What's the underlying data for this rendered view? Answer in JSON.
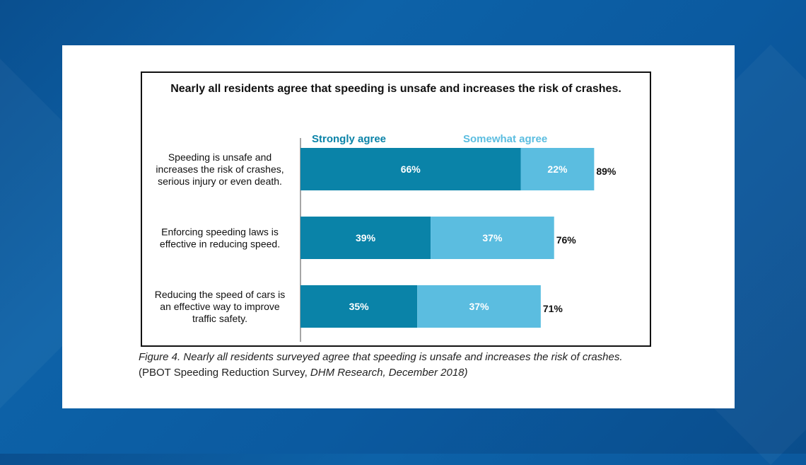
{
  "colors": {
    "strongly": "#0a83a8",
    "somewhat": "#5bbde0",
    "legend_strongly": "#0a83a8",
    "legend_somewhat": "#5bbde0"
  },
  "caption": {
    "line1": "Figure 4. Nearly all residents surveyed agree that speeding is unsafe and increases the risk of crashes.",
    "line2_prefix": "(PBOT Speeding Reduction Survey, ",
    "line2_italic": "DHM Research, December 2018)"
  },
  "chart_data": {
    "type": "bar",
    "orientation": "horizontal",
    "stacked": true,
    "title": "Nearly all residents agree that speeding is unsafe and increases the risk of crashes.",
    "categories": [
      [
        "Speeding is unsafe and",
        "increases the risk of crashes,",
        "serious injury or even death."
      ],
      [
        "Enforcing speeding laws is",
        "effective in reducing speed."
      ],
      [
        "Reducing the speed of cars is",
        "an effective way to improve",
        "traffic safety."
      ]
    ],
    "series": [
      {
        "name": "Strongly agree",
        "values": [
          66,
          39,
          35
        ],
        "labels": [
          "66%",
          "39%",
          "35%"
        ]
      },
      {
        "name": "Somewhat agree",
        "values": [
          22,
          37,
          37
        ],
        "labels": [
          "22%",
          "37%",
          "37%"
        ]
      }
    ],
    "totals": [
      89,
      76,
      71
    ],
    "total_labels": [
      "89%",
      "76%",
      "71%"
    ],
    "xlim": [
      0,
      100
    ],
    "legend_position": "top",
    "grid": false
  }
}
